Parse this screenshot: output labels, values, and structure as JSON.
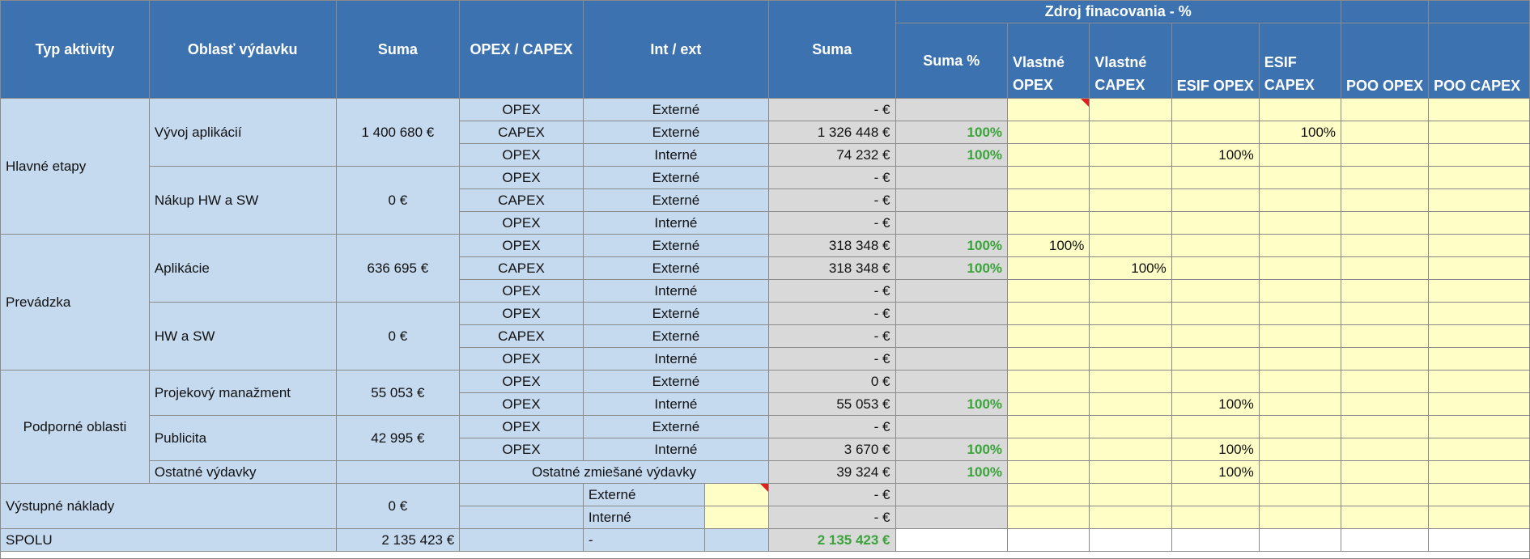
{
  "header": {
    "typ_aktivity": "Typ aktivity",
    "oblast": "Oblasť výdavku",
    "suma": "Suma",
    "opex_capex": "OPEX / CAPEX",
    "int_ext": "Int / ext",
    "suma2": "Suma",
    "zdroj": "Zdroj finacovania - %",
    "suma_pct": "Suma %",
    "vlastne_opex": [
      "Vlastné",
      "OPEX"
    ],
    "vlastne_capex": [
      "Vlastné",
      "CAPEX"
    ],
    "esif_opex": "ESIF OPEX",
    "esif_capex": [
      "ESIF",
      "CAPEX"
    ],
    "poo_opex": "POO OPEX",
    "poo_capex": "POO CAPEX"
  },
  "groups": {
    "hlavne": "Hlavné etapy",
    "prevadzka": "Prevádzka",
    "podporne": "Podporné oblasti",
    "vystupne": "Výstupné náklady",
    "spolu": "SPOLU"
  },
  "areas": {
    "vyvoj": {
      "name": "Vývoj aplikácií",
      "suma": "1 400 680 €"
    },
    "nakup": {
      "name": "Nákup HW a SW",
      "suma": "0 €"
    },
    "aplikacie": {
      "name": "Aplikácie",
      "suma": "636 695 €"
    },
    "hwsw": {
      "name": "HW a SW",
      "suma": "0 €"
    },
    "projekt": {
      "name": "Projekový manažment",
      "suma": "55 053 €"
    },
    "publicita": {
      "name": "Publicita",
      "suma": "42 995 €"
    },
    "ostatne": {
      "name": "Ostatné výdavky",
      "label": "Ostatné zmiešané výdavky",
      "suma2": "39 324 €",
      "pct": "100%",
      "esif_opex": "100%"
    },
    "vystupne": {
      "suma": "0 €"
    },
    "spolu": {
      "suma": "2 135 423 €",
      "int_ext": "-",
      "suma2": "2 135 423 €"
    }
  },
  "rows": [
    {
      "type": "OPEX",
      "ie": "Externé",
      "suma": "- €",
      "pct": "",
      "vo": "",
      "vc": "",
      "eo": "",
      "ec": "",
      "po": "",
      "pc": ""
    },
    {
      "type": "CAPEX",
      "ie": "Externé",
      "suma": "1 326 448 €",
      "pct": "100%",
      "vo": "",
      "vc": "",
      "eo": "",
      "ec": "100%",
      "po": "",
      "pc": ""
    },
    {
      "type": "OPEX",
      "ie": "Interné",
      "suma": "74 232 €",
      "pct": "100%",
      "vo": "",
      "vc": "",
      "eo": "100%",
      "ec": "",
      "po": "",
      "pc": ""
    },
    {
      "type": "OPEX",
      "ie": "Externé",
      "suma": "- €",
      "pct": "",
      "vo": "",
      "vc": "",
      "eo": "",
      "ec": "",
      "po": "",
      "pc": ""
    },
    {
      "type": "CAPEX",
      "ie": "Externé",
      "suma": "- €",
      "pct": "",
      "vo": "",
      "vc": "",
      "eo": "",
      "ec": "",
      "po": "",
      "pc": ""
    },
    {
      "type": "OPEX",
      "ie": "Interné",
      "suma": "- €",
      "pct": "",
      "vo": "",
      "vc": "",
      "eo": "",
      "ec": "",
      "po": "",
      "pc": ""
    },
    {
      "type": "OPEX",
      "ie": "Externé",
      "suma": "318 348 €",
      "pct": "100%",
      "vo": "100%",
      "vc": "",
      "eo": "",
      "ec": "",
      "po": "",
      "pc": ""
    },
    {
      "type": "CAPEX",
      "ie": "Externé",
      "suma": "318 348 €",
      "pct": "100%",
      "vo": "",
      "vc": "100%",
      "eo": "",
      "ec": "",
      "po": "",
      "pc": ""
    },
    {
      "type": "OPEX",
      "ie": "Interné",
      "suma": "- €",
      "pct": "",
      "vo": "",
      "vc": "",
      "eo": "",
      "ec": "",
      "po": "",
      "pc": ""
    },
    {
      "type": "OPEX",
      "ie": "Externé",
      "suma": "- €",
      "pct": "",
      "vo": "",
      "vc": "",
      "eo": "",
      "ec": "",
      "po": "",
      "pc": ""
    },
    {
      "type": "CAPEX",
      "ie": "Externé",
      "suma": "- €",
      "pct": "",
      "vo": "",
      "vc": "",
      "eo": "",
      "ec": "",
      "po": "",
      "pc": ""
    },
    {
      "type": "OPEX",
      "ie": "Interné",
      "suma": "- €",
      "pct": "",
      "vo": "",
      "vc": "",
      "eo": "",
      "ec": "",
      "po": "",
      "pc": ""
    },
    {
      "type": "OPEX",
      "ie": "Externé",
      "suma": "0 €",
      "pct": "",
      "vo": "",
      "vc": "",
      "eo": "",
      "ec": "",
      "po": "",
      "pc": ""
    },
    {
      "type": "OPEX",
      "ie": "Interné",
      "suma": "55 053 €",
      "pct": "100%",
      "vo": "",
      "vc": "",
      "eo": "100%",
      "ec": "",
      "po": "",
      "pc": ""
    },
    {
      "type": "OPEX",
      "ie": "Externé",
      "suma": "- €",
      "pct": "",
      "vo": "",
      "vc": "",
      "eo": "",
      "ec": "",
      "po": "",
      "pc": ""
    },
    {
      "type": "OPEX",
      "ie": "Interné",
      "suma": "3 670 €",
      "pct": "100%",
      "vo": "",
      "vc": "",
      "eo": "100%",
      "ec": "",
      "po": "",
      "pc": ""
    }
  ],
  "vystupne_rows": [
    {
      "ie": "Externé",
      "suma": "- €"
    },
    {
      "ie": "Interné",
      "suma": "- €"
    }
  ],
  "colors": {
    "header_blue": "#3d72b0",
    "light_blue": "#c5d9ef",
    "gray": "#d9d9d9",
    "yellow": "#fffec6",
    "green_text": "#3aa33a",
    "comment_flag": "#e02020"
  }
}
